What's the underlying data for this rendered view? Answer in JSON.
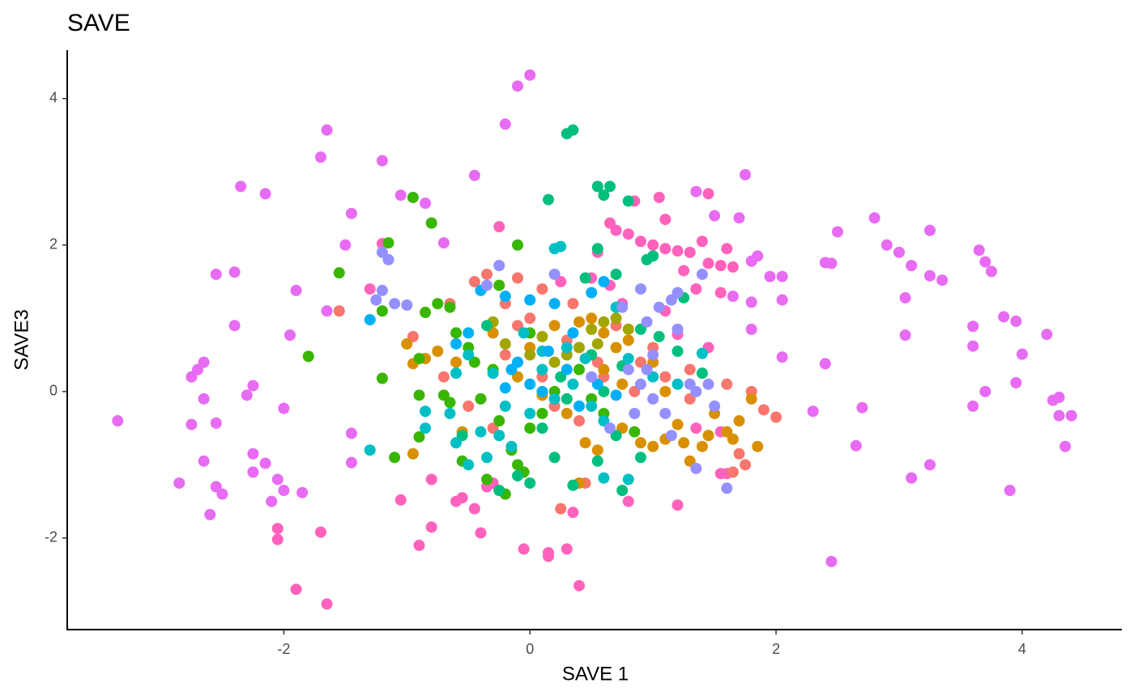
{
  "chart_data": {
    "type": "scatter",
    "title": "SAVE",
    "x_label": "SAVE 1",
    "y_label": "SAVE3",
    "xlim": [
      -3.76,
      4.81
    ],
    "ylim": [
      -3.25,
      4.66
    ],
    "xticks": [
      -2,
      0,
      2,
      4
    ],
    "yticks": [
      -2,
      0,
      2,
      4
    ],
    "series": [
      {
        "color": "#E76BF3",
        "x": [
          -3.35,
          -2.85,
          -2.75,
          -2.7,
          -2.65,
          -2.75,
          -2.65,
          -2.55,
          -2.65,
          -2.6,
          -2.55,
          -2.5,
          -2.55,
          -2.4,
          -2.4,
          -2.35,
          -2.3,
          -2.25,
          -2.25,
          -2.25,
          -2.15,
          -2.15,
          -2.1,
          -2.05,
          -2.0,
          -1.95,
          -2.0,
          -1.9,
          -1.85,
          -1.65,
          -1.7,
          -1.65,
          -1.5,
          -1.45,
          -1.45,
          -1.45,
          -1.2,
          -1.05,
          -0.85,
          -0.7,
          -0.45,
          -0.2,
          -0.1,
          0,
          1.35,
          1.75,
          1.5,
          1.7,
          2.4,
          2.5,
          2.45,
          2.8,
          2.9,
          3.0,
          3.1,
          3.25,
          3.25,
          3.35,
          3.05,
          3.05,
          3.65,
          3.7,
          3.75,
          3.6,
          3.6,
          3.85,
          3.95,
          4.0,
          3.95,
          4.2,
          3.7,
          3.6,
          2.4,
          2.7,
          2.3,
          2.65,
          4.25,
          4.3,
          4.3,
          4.4,
          4.35,
          3.25,
          3.1,
          3.9,
          2.45,
          1.85,
          1.8,
          1.95,
          2.05,
          2.05,
          2.05,
          1.8,
          1.65,
          1.8
        ],
        "values": [
          -0.4,
          -1.25,
          0.2,
          0.3,
          0.4,
          -0.45,
          -0.1,
          -0.43,
          -0.95,
          -1.68,
          -1.3,
          -1.4,
          1.6,
          1.63,
          0.9,
          2.8,
          -0.05,
          0.08,
          -0.85,
          -1.1,
          2.7,
          -0.98,
          -1.5,
          -1.2,
          -1.35,
          0.77,
          -0.23,
          1.38,
          -1.38,
          3.57,
          3.2,
          1.1,
          2.0,
          2.43,
          -0.57,
          -0.97,
          3.15,
          2.68,
          2.57,
          2.03,
          2.95,
          3.65,
          4.17,
          4.32,
          2.73,
          2.96,
          2.4,
          2.37,
          1.76,
          2.18,
          1.75,
          2.37,
          2.0,
          1.9,
          1.72,
          2.2,
          1.58,
          1.52,
          1.28,
          0.77,
          1.93,
          1.77,
          1.64,
          0.89,
          0.62,
          1.02,
          0.96,
          0.51,
          0.12,
          0.78,
          0.0,
          -0.2,
          0.38,
          -0.22,
          -0.27,
          -0.74,
          -0.12,
          -0.08,
          -0.33,
          -0.33,
          -0.75,
          -1.0,
          -1.18,
          -1.35,
          -2.32,
          1.85,
          1.78,
          1.57,
          1.57,
          1.25,
          0.47,
          1.22,
          1.3,
          0.85
        ]
      },
      {
        "color": "#FF62BC",
        "x": [
          -1.2,
          -1.3,
          -1.05,
          -0.8,
          -0.8,
          -0.9,
          -0.6,
          -0.55,
          -0.4,
          -0.45,
          -0.35,
          -0.3,
          -0.05,
          0.15,
          0.15,
          0.3,
          0.35,
          0.4,
          -1.9,
          -1.65,
          -1.7,
          -2.05,
          -2.05,
          0.55,
          0.65,
          0.7,
          0.8,
          0.9,
          1.0,
          1.1,
          1.2,
          1.3,
          1.4,
          1.45,
          1.55,
          1.6,
          1.25,
          1.35,
          1.55,
          1.65,
          1.1,
          1.05,
          1.45,
          0.85,
          0.5,
          0.65,
          0.75,
          0.8,
          1.2,
          1.55,
          1.6,
          1.45,
          1.35,
          1.55,
          1.1,
          1.2,
          0.25,
          -0.25
        ],
        "values": [
          2.02,
          1.4,
          -1.48,
          -1.2,
          -1.85,
          -2.1,
          -1.5,
          -1.45,
          -1.93,
          -1.6,
          -1.3,
          -1.25,
          -2.15,
          -2.25,
          -2.2,
          -2.15,
          -1.65,
          -2.65,
          -2.7,
          -2.9,
          -1.92,
          -1.87,
          -2.02,
          1.9,
          2.3,
          2.2,
          2.15,
          2.05,
          2.0,
          1.95,
          1.92,
          1.9,
          2.05,
          1.75,
          1.72,
          1.95,
          1.65,
          1.4,
          1.35,
          1.7,
          2.35,
          2.65,
          2.7,
          2.6,
          1.55,
          1.45,
          1.2,
          -1.5,
          -1.55,
          -1.12,
          -1.12,
          0.6,
          -0.5,
          -0.55,
          1.1,
          0.78,
          1.5,
          2.25
        ]
      },
      {
        "color": "#F8766D",
        "x": [
          -1.55,
          -0.35,
          -0.45,
          -0.2,
          0.0,
          0.1,
          -0.1,
          0.3,
          0.5,
          0.6,
          0.7,
          0.9,
          1.1,
          1.3,
          1.6,
          1.8,
          1.9,
          2.0,
          1.7,
          1.75,
          1.65,
          -0.95,
          -0.7,
          -0.5,
          -0.2,
          0.2,
          0.4,
          0.25,
          0.45,
          0.55,
          0.85,
          1.0,
          -0.3,
          0.1,
          -0.65,
          -0.1,
          0.35,
          1.3
        ],
        "values": [
          1.1,
          1.6,
          1.5,
          1.2,
          1.0,
          1.4,
          0.9,
          0.7,
          0.5,
          0.2,
          0.9,
          0.4,
          0.2,
          -0.1,
          0.1,
          0.0,
          -0.25,
          -0.35,
          -0.85,
          -1.0,
          -1.1,
          0.75,
          0.2,
          -0.2,
          0.5,
          -0.2,
          -0.4,
          -1.6,
          -1.25,
          0.4,
          0.0,
          0.6,
          -0.5,
          0.2,
          1.2,
          1.55,
          1.2,
          0.3
        ]
      },
      {
        "color": "#D89000",
        "x": [
          -1.0,
          -0.95,
          -0.85,
          -0.75,
          -0.6,
          -0.55,
          -0.3,
          0.0,
          0.2,
          0.4,
          0.6,
          0.8,
          1.0,
          1.1,
          1.2,
          1.25,
          1.3,
          1.4,
          1.45,
          1.5,
          1.6,
          1.65,
          1.7,
          1.85,
          1.8,
          1.0,
          1.1,
          0.9,
          0.75,
          0.55,
          0.4,
          0.45,
          0.3,
          0.1,
          -0.1,
          0.6,
          0.75,
          -0.95,
          0.7,
          0.5
        ],
        "values": [
          0.65,
          0.38,
          0.45,
          0.55,
          0.4,
          -0.55,
          0.8,
          0.6,
          0.9,
          0.95,
          0.8,
          0.7,
          0.4,
          0.0,
          -0.45,
          -0.7,
          -0.95,
          -0.75,
          -0.6,
          -0.3,
          -0.55,
          -0.65,
          -0.4,
          -0.75,
          -0.1,
          -0.75,
          -0.65,
          -0.7,
          -0.5,
          -0.8,
          -1.25,
          -0.7,
          -0.3,
          -0.05,
          0.2,
          0.3,
          0.1,
          -0.85,
          0.6,
          1.0
        ]
      },
      {
        "color": "#A3A500",
        "x": [
          -0.3,
          0.1,
          0.5,
          0.7,
          0.4,
          0.2,
          0.6,
          0.3,
          0.8,
          0.0,
          0.55,
          -0.2
        ],
        "values": [
          0.95,
          0.75,
          0.85,
          1.0,
          0.6,
          0.4,
          0.95,
          0.5,
          0.85,
          0.5,
          0.65,
          0.65
        ]
      },
      {
        "color": "#39B600",
        "x": [
          -1.8,
          -1.55,
          -1.15,
          -1.2,
          -1.2,
          -0.95,
          -0.8,
          -0.9,
          -0.85,
          -0.75,
          -0.65,
          -0.9,
          -0.7,
          -0.9,
          -1.1,
          -0.6,
          -0.5,
          -0.4,
          -0.35,
          -0.25,
          -0.1,
          -0.15,
          -0.1,
          0.0,
          0.1,
          0.2,
          -0.3,
          0.4,
          0.5,
          -0.2,
          -0.05,
          0.0,
          -0.45,
          0.6,
          0.85,
          -0.65,
          -0.55,
          -0.25
        ],
        "values": [
          0.48,
          1.62,
          2.03,
          1.1,
          0.18,
          2.65,
          2.3,
          0.45,
          1.08,
          1.2,
          1.15,
          -0.05,
          -0.05,
          -0.62,
          -0.9,
          0.8,
          0.6,
          -0.1,
          -1.2,
          1.45,
          2.0,
          -0.8,
          -1.0,
          -0.5,
          -0.3,
          0.0,
          0.3,
          0.3,
          -0.1,
          -1.4,
          -1.1,
          0.8,
          0.4,
          -0.3,
          -0.55,
          -0.15,
          -0.95,
          -0.4
        ]
      },
      {
        "color": "#00BF7D",
        "x": [
          0.3,
          0.35,
          0.15,
          0.55,
          0.65,
          0.6,
          0.8,
          0.55,
          0.95,
          1.0,
          0.45,
          0.7,
          1.25,
          1.2,
          1.4,
          0.9,
          0.6,
          0.3,
          0.1,
          0.2,
          0.35,
          0.55,
          0.75,
          0.9,
          0.0,
          -0.25,
          -0.1,
          -0.55,
          0.5,
          0.75,
          1.05,
          -0.35,
          0.25,
          0.7
        ],
        "values": [
          3.52,
          3.57,
          2.62,
          2.8,
          2.8,
          2.68,
          2.6,
          1.95,
          1.8,
          1.85,
          1.55,
          1.6,
          1.28,
          0.55,
          0.25,
          0.85,
          0.0,
          -0.1,
          -0.5,
          -0.9,
          -1.28,
          -0.95,
          -1.35,
          -0.9,
          -1.25,
          -1.35,
          -1.15,
          -0.6,
          0.5,
          0.35,
          0.75,
          0.9,
          0.2,
          -0.6
        ]
      },
      {
        "color": "#00BFC4",
        "x": [
          -1.3,
          -0.85,
          -0.85,
          -0.65,
          -0.6,
          -0.5,
          -0.4,
          -0.35,
          -0.25,
          -0.15,
          0.0,
          0.1,
          0.2,
          0.25,
          0.3,
          0.45,
          0.6,
          0.8,
          0.6,
          0.5,
          0.8,
          1.0,
          1.2,
          1.4,
          -0.5,
          -0.3,
          0.2,
          -0.05,
          0.35,
          -0.6,
          -0.2,
          0.7,
          0.1
        ],
        "values": [
          -0.8,
          -0.5,
          -0.27,
          -0.3,
          -0.7,
          -1.0,
          -0.55,
          -0.9,
          -0.6,
          -0.75,
          -0.3,
          0.3,
          1.95,
          1.98,
          0.6,
          0.45,
          -0.4,
          -1.2,
          -1.18,
          -0.2,
          0.45,
          0.2,
          0.1,
          0.52,
          0.5,
          0.25,
          -0.1,
          0.8,
          0.1,
          0.25,
          -0.2,
          1.15,
          0.55
        ]
      },
      {
        "color": "#00B0F6",
        "x": [
          -1.3,
          -0.4,
          -0.2,
          0.0,
          0.2,
          0.5,
          0.6,
          -0.1,
          0.1,
          0.3,
          0.0,
          -0.5,
          -0.2,
          0.4,
          0.7,
          0.55,
          -0.15,
          0.15,
          0.35,
          -0.6
        ],
        "values": [
          0.98,
          1.38,
          1.3,
          1.25,
          1.2,
          1.35,
          1.5,
          0.4,
          0.0,
          0.3,
          0.1,
          0.8,
          0.05,
          -0.2,
          -0.05,
          0.1,
          0.3,
          0.55,
          0.8,
          0.65
        ]
      },
      {
        "color": "#9590FF",
        "x": [
          -1.2,
          -1.15,
          -1.1,
          -1.0,
          -1.2,
          -1.25,
          -0.35,
          -0.25,
          0.2,
          1.4,
          0.9,
          1.05,
          1.15,
          1.2,
          0.75,
          0.95,
          1.0,
          0.95,
          0.9,
          1.0,
          1.1,
          1.3,
          1.35,
          1.5,
          1.45,
          1.35,
          1.6,
          1.15,
          0.85,
          0.65,
          0.8,
          1.2,
          0.5
        ],
        "values": [
          1.9,
          1.8,
          1.2,
          1.18,
          1.38,
          1.25,
          1.45,
          1.72,
          1.6,
          1.6,
          1.4,
          1.15,
          1.25,
          1.35,
          1.15,
          0.95,
          0.5,
          0.3,
          0.1,
          -0.1,
          -0.3,
          0.1,
          0.0,
          -0.2,
          0.1,
          -1.05,
          -1.32,
          -0.6,
          -0.3,
          -0.5,
          0.3,
          0.85,
          0.2
        ]
      }
    ]
  }
}
